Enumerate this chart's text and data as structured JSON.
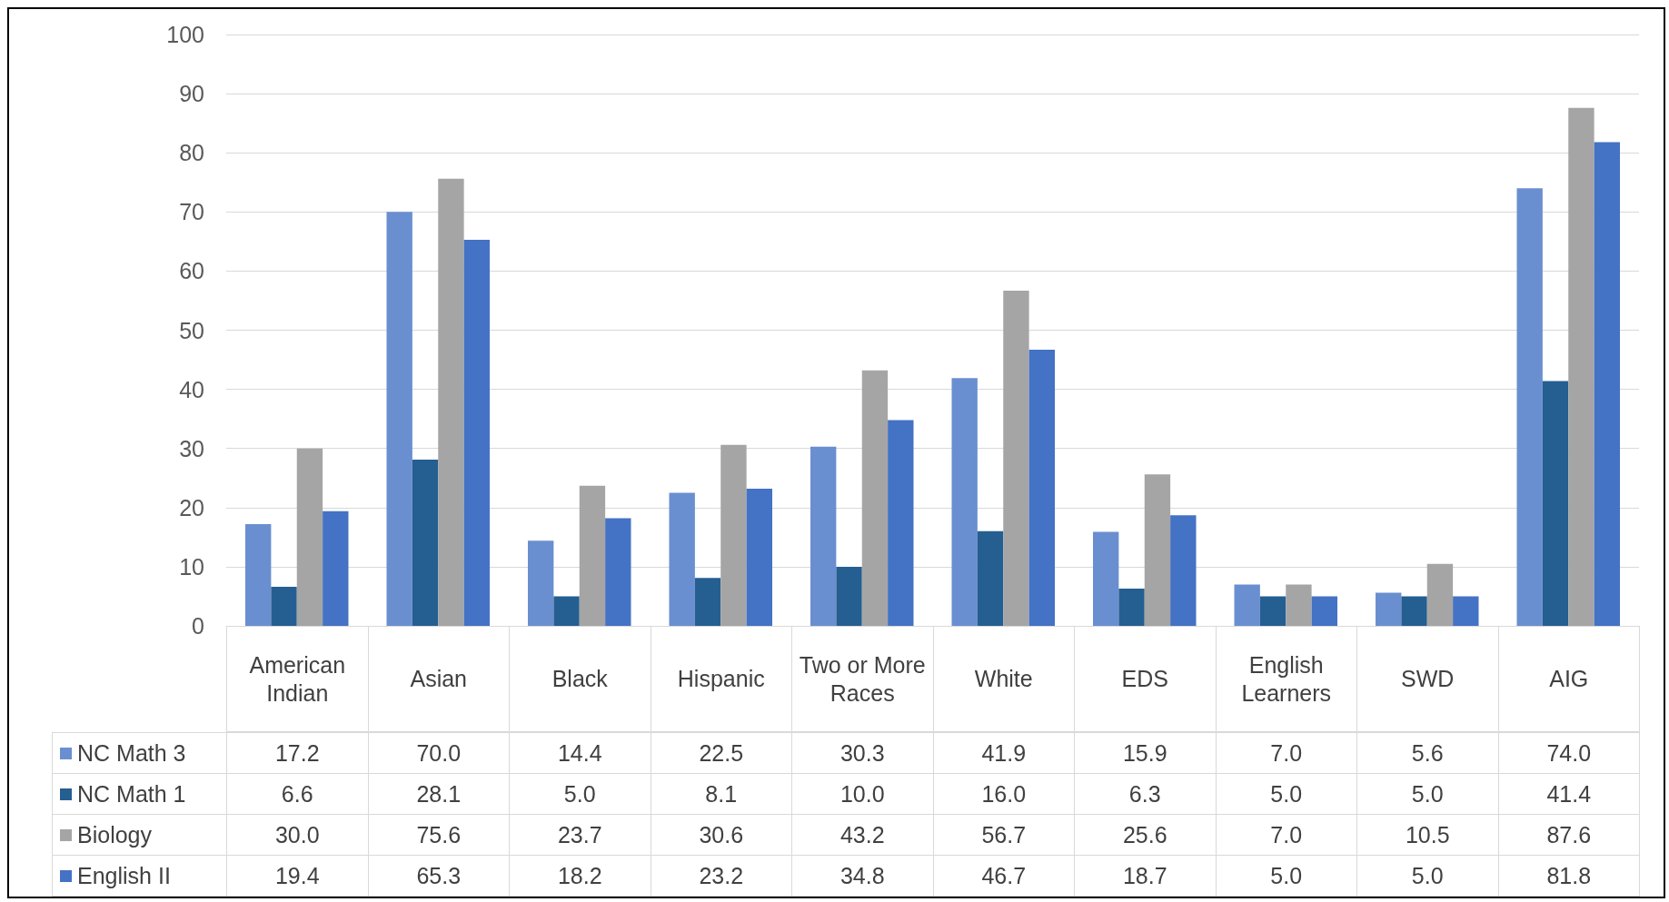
{
  "chart_data": {
    "type": "bar",
    "categories": [
      "American Indian",
      "Asian",
      "Black",
      "Hispanic",
      "Two or More Races",
      "White",
      "EDS",
      "English Learners",
      "SWD",
      "AIG"
    ],
    "series": [
      {
        "name": "NC Math 3",
        "color": "#6a8fd0",
        "values": [
          17.2,
          70.0,
          14.4,
          22.5,
          30.3,
          41.9,
          15.9,
          7.0,
          5.6,
          74.0
        ],
        "value_labels": [
          "17.2",
          "70.0",
          "14.4",
          "22.5",
          "30.3",
          "41.9",
          "15.9",
          "7.0",
          "5.6",
          "74.0"
        ]
      },
      {
        "name": "NC Math 1",
        "color": "#255e91",
        "values": [
          6.6,
          28.1,
          5.0,
          8.1,
          10.0,
          16.0,
          6.3,
          5.0,
          5.0,
          41.4
        ],
        "value_labels": [
          "6.6",
          "28.1",
          "5.0",
          "8.1",
          "10.0",
          "16.0",
          "6.3",
          "5.0",
          "5.0",
          "41.4"
        ]
      },
      {
        "name": "Biology",
        "color": "#a5a5a5",
        "values": [
          30.0,
          75.6,
          23.7,
          30.6,
          43.2,
          56.7,
          25.6,
          7.0,
          10.5,
          87.6
        ],
        "value_labels": [
          "30.0",
          "75.6",
          "23.7",
          "30.6",
          "43.2",
          "56.7",
          "25.6",
          "7.0",
          "10.5",
          "87.6"
        ]
      },
      {
        "name": "English II",
        "color": "#4472c4",
        "values": [
          19.4,
          65.3,
          18.2,
          23.2,
          34.8,
          46.7,
          18.7,
          5.0,
          5.0,
          81.8
        ],
        "value_labels": [
          "19.4",
          "65.3",
          "18.2",
          "23.2",
          "34.8",
          "46.7",
          "18.7",
          "5.0",
          "5.0",
          "81.8"
        ]
      }
    ],
    "ylim": [
      0,
      100
    ],
    "yticks": [
      0,
      10,
      20,
      30,
      40,
      50,
      60,
      70,
      80,
      90,
      100
    ],
    "grid": "y",
    "legend": "bottom"
  }
}
